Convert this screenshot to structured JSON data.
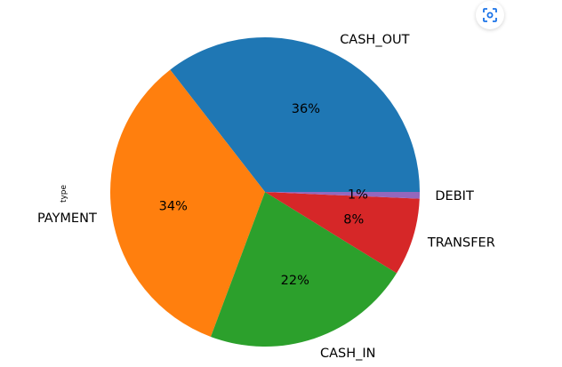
{
  "chart_data": {
    "type": "pie",
    "title": "",
    "ylabel": "type",
    "categories": [
      "CASH_OUT",
      "PAYMENT",
      "CASH_IN",
      "TRANSFER",
      "DEBIT"
    ],
    "values": [
      35.5,
      33.8,
      21.9,
      8.1,
      0.7
    ],
    "percent_labels": [
      "36%",
      "34%",
      "22%",
      "8%",
      "1%"
    ],
    "colors": [
      "#1f77b4",
      "#ff7f0e",
      "#2ca02c",
      "#d62728",
      "#9467bd"
    ],
    "start_angle_deg": 0,
    "direction": "counterclockwise"
  },
  "ui": {
    "scan_button_icon": "image-scan-icon",
    "accent_color": "#1a73e8"
  }
}
